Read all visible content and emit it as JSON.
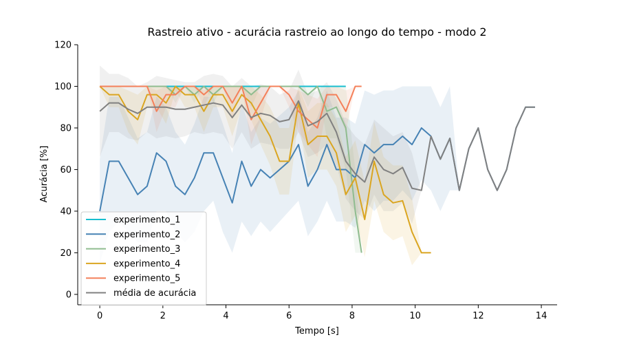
{
  "chart_data": {
    "type": "line",
    "title": "Rastreio ativo - acurácia rastreio ao longo do tempo - modo 2",
    "xlabel": "Tempo [s]",
    "ylabel": "Acurácia [%]",
    "xlim": [
      -0.7,
      14.5
    ],
    "ylim": [
      -5,
      120
    ],
    "xticks": [
      0,
      2,
      4,
      6,
      8,
      10,
      12,
      14
    ],
    "yticks": [
      0,
      20,
      40,
      60,
      80,
      100,
      120
    ],
    "x_tick_labels": [
      "0",
      "2",
      "4",
      "6",
      "8",
      "10",
      "12",
      "14"
    ],
    "y_tick_labels": [
      "0",
      "20",
      "40",
      "60",
      "80",
      "100",
      "120"
    ],
    "grid": false,
    "legend_position": "lower-left",
    "series": [
      {
        "name": "experimento_1",
        "color": "#17becf",
        "x": [
          0,
          0.3,
          0.6,
          0.9,
          1.2,
          1.5,
          1.8,
          2.1,
          2.4,
          2.7,
          3.0,
          3.3,
          3.6,
          3.9,
          4.2,
          4.5,
          4.8,
          5.1,
          5.4,
          5.7,
          6.0,
          6.3,
          6.6,
          6.9,
          7.2,
          7.5,
          7.8
        ],
        "y": [
          100,
          100,
          100,
          100,
          100,
          100,
          100,
          100,
          100,
          100,
          100,
          100,
          100,
          100,
          100,
          100,
          100,
          100,
          100,
          100,
          100,
          100,
          100,
          100,
          100,
          100,
          100
        ],
        "lower": [
          100,
          100,
          100,
          100,
          100,
          100,
          100,
          100,
          100,
          100,
          100,
          100,
          100,
          100,
          100,
          100,
          100,
          100,
          100,
          100,
          100,
          100,
          100,
          100,
          100,
          100,
          100
        ],
        "upper": [
          100,
          100,
          100,
          100,
          100,
          100,
          100,
          100,
          100,
          100,
          100,
          100,
          100,
          100,
          100,
          100,
          100,
          100,
          100,
          100,
          100,
          100,
          100,
          100,
          100,
          100,
          100
        ]
      },
      {
        "name": "experimento_2",
        "color": "#4682b4",
        "x": [
          0,
          0.3,
          0.6,
          0.9,
          1.2,
          1.5,
          1.8,
          2.1,
          2.4,
          2.7,
          3.0,
          3.3,
          3.6,
          3.9,
          4.2,
          4.5,
          4.8,
          5.1,
          5.4,
          5.7,
          6.0,
          6.3,
          6.6,
          6.9,
          7.2,
          7.5,
          7.8,
          8.1,
          8.4,
          8.7,
          9.0,
          9.3,
          9.6,
          9.9,
          10.2,
          10.5,
          10.8,
          11.1,
          11.4,
          11.7,
          12.0,
          12.3,
          12.6,
          12.9,
          13.2,
          13.5,
          13.8
        ],
        "y": [
          40,
          64,
          64,
          56,
          48,
          52,
          68,
          64,
          52,
          48,
          56,
          68,
          68,
          56,
          44,
          64,
          52,
          60,
          56,
          60,
          64,
          72,
          52,
          60,
          72,
          60,
          60,
          56,
          72,
          68,
          72,
          72,
          76,
          72,
          80,
          76,
          65,
          75,
          50,
          70,
          80,
          60,
          50,
          60,
          80,
          90,
          90
        ],
        "lower": [
          15,
          30,
          35,
          30,
          25,
          25,
          40,
          40,
          30,
          25,
          30,
          40,
          45,
          30,
          20,
          35,
          28,
          35,
          30,
          35,
          40,
          45,
          28,
          35,
          45,
          35,
          35,
          32,
          45,
          40,
          45,
          45,
          50,
          45,
          55,
          50,
          40,
          50,
          50,
          70,
          80,
          60,
          50,
          60,
          80,
          90,
          90
        ],
        "upper": [
          65,
          95,
          95,
          85,
          75,
          78,
          95,
          90,
          78,
          72,
          82,
          95,
          95,
          82,
          68,
          92,
          78,
          85,
          82,
          86,
          90,
          98,
          78,
          85,
          98,
          85,
          85,
          82,
          98,
          96,
          98,
          98,
          100,
          100,
          100,
          100,
          90,
          100,
          50,
          70,
          80,
          60,
          50,
          60,
          80,
          90,
          90
        ]
      },
      {
        "name": "experimento_3",
        "color": "#8fbc8f",
        "x": [
          0,
          0.3,
          0.6,
          0.9,
          1.2,
          1.5,
          1.8,
          2.1,
          2.4,
          2.7,
          3.0,
          3.3,
          3.6,
          3.9,
          4.2,
          4.5,
          4.8,
          5.1,
          5.4,
          5.7,
          6.0,
          6.3,
          6.6,
          6.9,
          7.2,
          7.5,
          7.8,
          8.1,
          8.3
        ],
        "y": [
          100,
          100,
          100,
          100,
          100,
          100,
          100,
          100,
          96,
          100,
          96,
          100,
          96,
          100,
          100,
          100,
          96,
          100,
          100,
          100,
          100,
          100,
          96,
          100,
          88,
          90,
          80,
          40,
          20
        ],
        "lower": [
          100,
          100,
          100,
          100,
          100,
          100,
          100,
          100,
          92,
          100,
          92,
          100,
          92,
          100,
          100,
          100,
          90,
          100,
          100,
          100,
          100,
          100,
          90,
          100,
          75,
          75,
          60,
          20,
          20
        ],
        "upper": [
          100,
          100,
          100,
          100,
          100,
          100,
          100,
          100,
          100,
          100,
          100,
          100,
          100,
          100,
          100,
          100,
          100,
          100,
          100,
          100,
          100,
          100,
          100,
          100,
          100,
          100,
          100,
          60,
          20
        ]
      },
      {
        "name": "experimento_4",
        "color": "#daa520",
        "x": [
          0,
          0.3,
          0.6,
          0.9,
          1.2,
          1.5,
          1.8,
          2.1,
          2.4,
          2.7,
          3.0,
          3.3,
          3.6,
          3.9,
          4.2,
          4.5,
          4.8,
          5.1,
          5.4,
          5.7,
          6.0,
          6.3,
          6.6,
          6.9,
          7.2,
          7.5,
          7.8,
          8.1,
          8.4,
          8.7,
          9.0,
          9.3,
          9.6,
          9.9,
          10.2,
          10.5
        ],
        "y": [
          100,
          96,
          96,
          88,
          84,
          96,
          96,
          92,
          100,
          96,
          96,
          88,
          96,
          96,
          88,
          96,
          92,
          84,
          76,
          64,
          64,
          92,
          72,
          76,
          76,
          68,
          48,
          56,
          36,
          64,
          48,
          44,
          45,
          30,
          20,
          20
        ],
        "lower": [
          100,
          90,
          90,
          78,
          72,
          90,
          90,
          82,
          98,
          90,
          90,
          78,
          90,
          90,
          76,
          90,
          84,
          72,
          62,
          48,
          48,
          84,
          56,
          60,
          60,
          52,
          30,
          38,
          18,
          45,
          30,
          26,
          28,
          14,
          20,
          20
        ],
        "upper": [
          100,
          100,
          100,
          98,
          96,
          100,
          100,
          100,
          100,
          100,
          100,
          98,
          100,
          100,
          100,
          100,
          100,
          96,
          90,
          80,
          80,
          100,
          88,
          92,
          92,
          84,
          66,
          74,
          54,
          83,
          66,
          62,
          62,
          46,
          20,
          20
        ]
      },
      {
        "name": "experimento_5",
        "color": "#f4805a",
        "x": [
          0,
          0.3,
          0.6,
          0.9,
          1.2,
          1.5,
          1.8,
          2.1,
          2.4,
          2.7,
          3.0,
          3.3,
          3.6,
          3.9,
          4.2,
          4.5,
          4.8,
          5.1,
          5.4,
          5.7,
          6.0,
          6.3,
          6.6,
          6.9,
          7.2,
          7.5,
          7.8,
          8.1,
          8.3
        ],
        "y": [
          100,
          100,
          100,
          100,
          100,
          100,
          88,
          96,
          96,
          100,
          100,
          96,
          100,
          100,
          92,
          100,
          84,
          92,
          100,
          100,
          96,
          88,
          84,
          80,
          96,
          96,
          88,
          100,
          100
        ],
        "lower": [
          100,
          100,
          100,
          100,
          100,
          100,
          78,
          90,
          90,
          100,
          100,
          90,
          100,
          100,
          84,
          100,
          72,
          84,
          100,
          100,
          90,
          78,
          72,
          66,
          90,
          90,
          78,
          100,
          100
        ],
        "upper": [
          100,
          100,
          100,
          100,
          100,
          100,
          98,
          100,
          100,
          100,
          100,
          100,
          100,
          100,
          100,
          100,
          96,
          100,
          100,
          100,
          100,
          98,
          96,
          94,
          100,
          100,
          98,
          100,
          100
        ]
      },
      {
        "name": "média de acurácia",
        "color": "#808080",
        "x": [
          0,
          0.3,
          0.6,
          0.9,
          1.2,
          1.5,
          1.8,
          2.1,
          2.4,
          2.7,
          3.0,
          3.3,
          3.6,
          3.9,
          4.2,
          4.5,
          4.8,
          5.1,
          5.4,
          5.7,
          6.0,
          6.3,
          6.6,
          6.9,
          7.2,
          7.5,
          7.8,
          8.1,
          8.4,
          8.7,
          9.0,
          9.3,
          9.6,
          9.9,
          10.2,
          10.5,
          10.8,
          11.1,
          11.4,
          11.7,
          12.0,
          12.3,
          12.6,
          12.9,
          13.2,
          13.5,
          13.8
        ],
        "y": [
          88,
          92,
          92,
          89,
          87,
          90,
          90,
          90,
          89,
          89,
          90,
          91,
          92,
          91,
          85,
          91,
          85,
          87,
          86,
          83,
          84,
          93,
          81,
          83,
          87,
          78,
          64,
          58,
          54,
          66,
          60,
          58,
          61,
          51,
          50,
          76,
          65,
          75,
          50,
          70,
          80,
          60,
          50,
          60,
          80,
          90,
          90
        ],
        "lower": [
          66,
          78,
          78,
          75,
          74,
          78,
          75,
          76,
          75,
          76,
          78,
          77,
          78,
          77,
          70,
          78,
          70,
          73,
          72,
          70,
          70,
          78,
          66,
          68,
          72,
          62,
          46,
          40,
          36,
          48,
          40,
          40,
          44,
          34,
          50,
          76,
          65,
          75,
          50,
          70,
          80,
          60,
          50,
          60,
          80,
          90,
          90
        ],
        "upper": [
          110,
          106,
          106,
          104,
          100,
          102,
          105,
          104,
          103,
          102,
          102,
          105,
          106,
          105,
          100,
          104,
          100,
          101,
          100,
          96,
          98,
          108,
          96,
          98,
          102,
          94,
          82,
          76,
          72,
          84,
          80,
          76,
          78,
          68,
          50,
          76,
          65,
          75,
          50,
          70,
          80,
          60,
          50,
          60,
          80,
          90,
          90
        ]
      }
    ]
  }
}
